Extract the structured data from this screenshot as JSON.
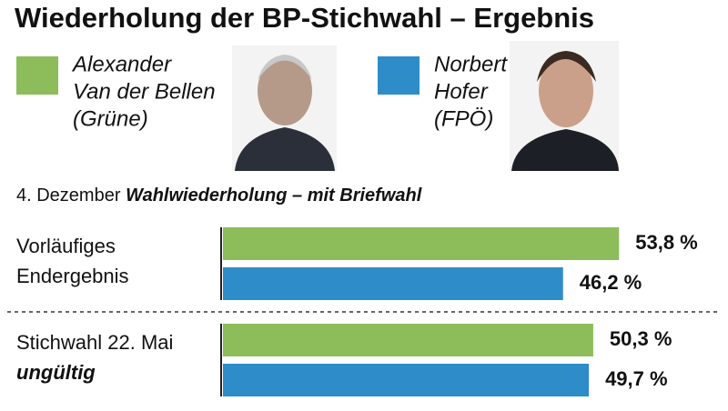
{
  "chart_data": {
    "type": "bar",
    "title": "Wiederholung der BP-Stichwahl – Ergebnis",
    "subtitle": [
      "4. Dezember",
      "Wahlwiederholung – mit Briefwahl"
    ],
    "categories": [
      [
        "Vorläufiges",
        "Endergebnis"
      ],
      [
        "Stichwahl 22. Mai",
        "ungültig"
      ]
    ],
    "series": [
      {
        "name": [
          "Alexander",
          "Van der Bellen",
          "(Grüne)"
        ],
        "color": "#8cbd5a",
        "values": [
          53.8,
          50.3
        ],
        "value_labels": [
          "53,8 %",
          "50,3 %"
        ]
      },
      {
        "name": [
          "Norbert",
          "Hofer",
          "(FPÖ)"
        ],
        "color": "#2e8cc8",
        "values": [
          46.2,
          49.7
        ],
        "value_labels": [
          "46,2 %",
          "49,7 %"
        ]
      }
    ]
  }
}
